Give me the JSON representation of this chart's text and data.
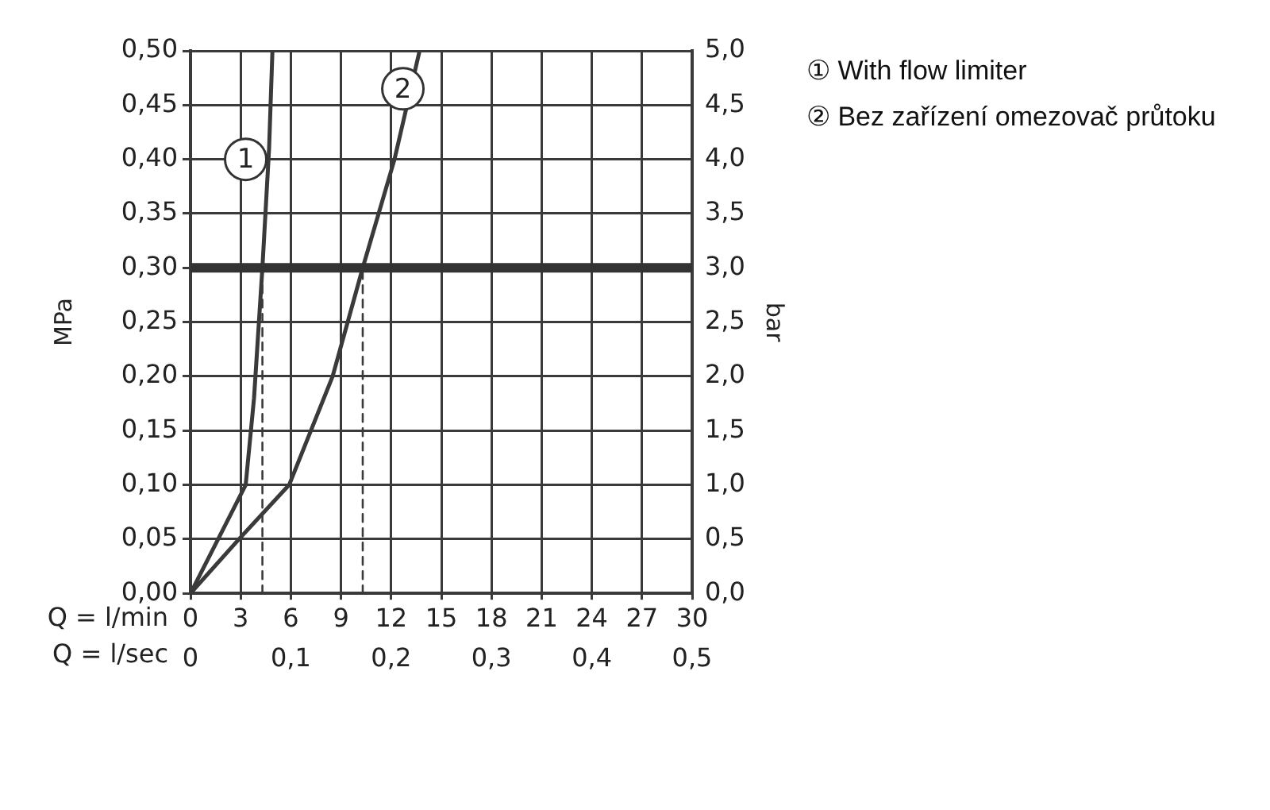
{
  "chart_data": {
    "type": "line",
    "xlabel": "Q = l/min",
    "x2label": "Q = l/sec",
    "ylabel": "MPa",
    "y2label": "bar",
    "xlim": [
      0,
      30
    ],
    "xticks": [
      0,
      3,
      6,
      9,
      12,
      15,
      18,
      21,
      24,
      27,
      30
    ],
    "x2lim": [
      0,
      0.5
    ],
    "x2ticks": [
      {
        "value": 0,
        "label": "0"
      },
      {
        "value": 0.1,
        "label": "0,1"
      },
      {
        "value": 0.2,
        "label": "0,2"
      },
      {
        "value": 0.3,
        "label": "0,3"
      },
      {
        "value": 0.4,
        "label": "0,4"
      },
      {
        "value": 0.5,
        "label": "0,5"
      }
    ],
    "ylim": [
      0,
      0.5
    ],
    "yticks": [
      {
        "value": 0,
        "label": "0,00"
      },
      {
        "value": 0.05,
        "label": "0,05"
      },
      {
        "value": 0.1,
        "label": "0,10"
      },
      {
        "value": 0.15,
        "label": "0,15"
      },
      {
        "value": 0.2,
        "label": "0,20"
      },
      {
        "value": 0.25,
        "label": "0,25"
      },
      {
        "value": 0.3,
        "label": "0,30"
      },
      {
        "value": 0.35,
        "label": "0,35"
      },
      {
        "value": 0.4,
        "label": "0,40"
      },
      {
        "value": 0.45,
        "label": "0,45"
      },
      {
        "value": 0.5,
        "label": "0,50"
      }
    ],
    "y2lim": [
      0,
      5
    ],
    "y2ticks": [
      {
        "value": 0,
        "label": "0,0"
      },
      {
        "value": 0.5,
        "label": "0,5"
      },
      {
        "value": 1,
        "label": "1,0"
      },
      {
        "value": 1.5,
        "label": "1,5"
      },
      {
        "value": 2,
        "label": "2,0"
      },
      {
        "value": 2.5,
        "label": "2,5"
      },
      {
        "value": 3,
        "label": "3,0"
      },
      {
        "value": 3.5,
        "label": "3,5"
      },
      {
        "value": 4,
        "label": "4,0"
      },
      {
        "value": 4.5,
        "label": "4,5"
      },
      {
        "value": 5,
        "label": "5,0"
      }
    ],
    "grid": true,
    "legend": "top right",
    "marker": "none",
    "series": [
      {
        "name": "① With flow limiter",
        "color": "#3a3a3a",
        "x": [
          0,
          3.3,
          3.8,
          4.3,
          4.7,
          4.9
        ],
        "values": [
          0,
          0.1,
          0.18,
          0.3,
          0.41,
          0.5
        ]
      },
      {
        "name": "② Bez zařízení omezovač průtoku",
        "color": "#3a3a3a",
        "x": [
          0,
          2.9,
          5.9,
          8.5,
          10.3,
          12.2,
          13.7
        ],
        "values": [
          0,
          0.05,
          0.1,
          0.2,
          0.3,
          0.4,
          0.5
        ]
      },
      {
        "type": "line",
        "color": "#3a3a3a",
        "line_style": "dashed",
        "x": [
          4.3,
          4.3
        ],
        "values": [
          0,
          0.3
        ]
      },
      {
        "type": "line",
        "color": "#3a3a3a",
        "line_style": "dashed",
        "x": [
          10.3,
          10.3
        ],
        "values": [
          0,
          0.3
        ]
      }
    ],
    "ref_lines": [
      {
        "axis": "y",
        "value": 0.3,
        "color": "#333333"
      }
    ],
    "annotations": [
      {
        "text": "1",
        "x": 3.3,
        "y": 0.4
      },
      {
        "text": "2",
        "x": 12.7,
        "y": 0.465
      }
    ]
  }
}
